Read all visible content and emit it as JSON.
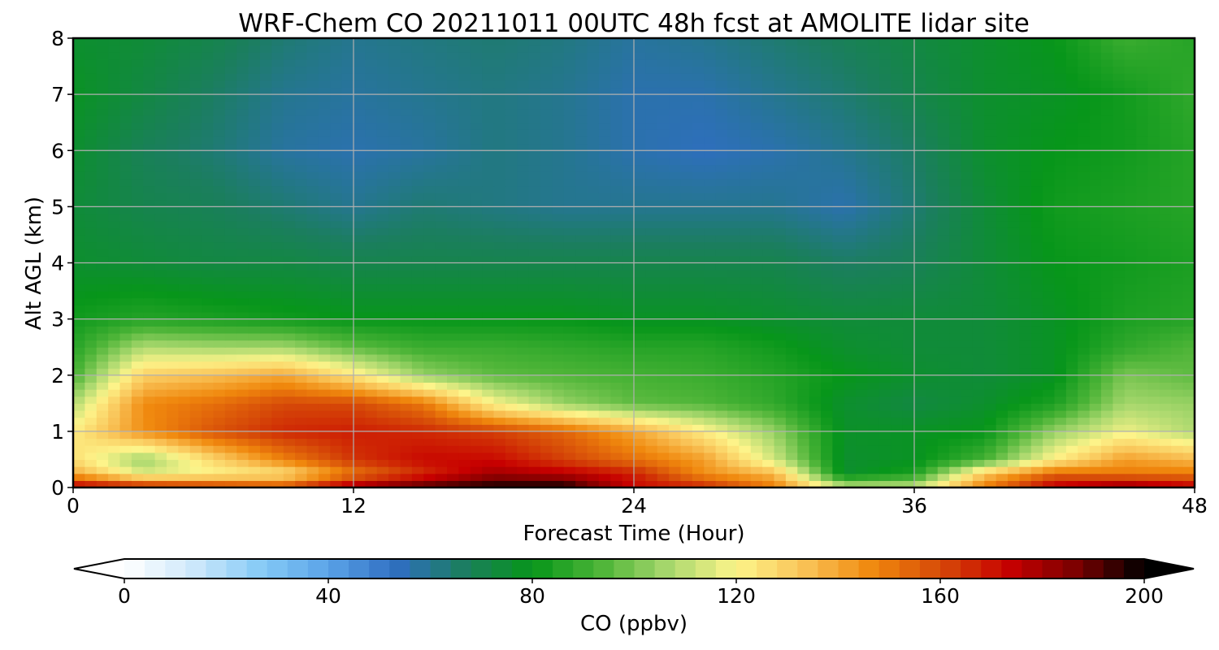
{
  "chart_data": {
    "type": "heatmap",
    "title": "WRF-Chem CO  20211011 00UTC 48h fcst at AMOLITE lidar site",
    "xlabel": "Forecast Time (Hour)",
    "ylabel": "Alt AGL (km)",
    "xlim": [
      0,
      48
    ],
    "ylim": [
      0,
      8
    ],
    "x_ticks": [
      "0",
      "12",
      "24",
      "36",
      "48"
    ],
    "y_ticks": [
      "0",
      "1",
      "2",
      "3",
      "4",
      "5",
      "6",
      "7",
      "8"
    ],
    "grid": true,
    "colorbar": {
      "label": "CO  (ppbv)",
      "range": [
        0,
        200
      ],
      "ticks": [
        "0",
        "40",
        "80",
        "120",
        "160",
        "200"
      ],
      "extend": "both",
      "orientation": "horizontal",
      "colors": [
        "#ffffff",
        "#cfe8fb",
        "#86cbf6",
        "#5aa3e8",
        "#2f6ec1",
        "#1b7e5e",
        "#07961a",
        "#4cb437",
        "#a9d86e",
        "#fdf48a",
        "#f9c357",
        "#f0880d",
        "#d64a08",
        "#c70000",
        "#7a0000",
        "#000000"
      ]
    },
    "x_hours": [
      0,
      3,
      6,
      9,
      12,
      15,
      18,
      21,
      24,
      27,
      30,
      33,
      36,
      39,
      42,
      45,
      48
    ],
    "altitude_km": [
      0,
      0.25,
      0.5,
      1,
      1.5,
      2,
      2.5,
      3,
      4,
      5,
      6,
      7,
      8
    ],
    "co_ppbv": [
      [
        178,
        172,
        166,
        160,
        182,
        194,
        199,
        200,
        172,
        168,
        150,
        112,
        112,
        150,
        177,
        186,
        176
      ],
      [
        140,
        115,
        120,
        125,
        150,
        165,
        180,
        176,
        168,
        145,
        136,
        76,
        84,
        132,
        154,
        150,
        150
      ],
      [
        126,
        104,
        128,
        148,
        164,
        172,
        172,
        162,
        152,
        142,
        113,
        76,
        78,
        92,
        122,
        142,
        136
      ],
      [
        122,
        145,
        158,
        166,
        168,
        166,
        162,
        154,
        140,
        122,
        104,
        77,
        78,
        80,
        104,
        118,
        108
      ],
      [
        108,
        146,
        152,
        160,
        160,
        150,
        120,
        104,
        96,
        94,
        88,
        76,
        72,
        76,
        84,
        106,
        104
      ],
      [
        92,
        130,
        134,
        140,
        124,
        104,
        96,
        94,
        92,
        90,
        86,
        80,
        76,
        74,
        78,
        100,
        96
      ],
      [
        86,
        108,
        106,
        106,
        96,
        90,
        90,
        88,
        86,
        86,
        82,
        76,
        74,
        74,
        78,
        88,
        94
      ],
      [
        82,
        86,
        84,
        82,
        80,
        80,
        80,
        80,
        78,
        78,
        76,
        74,
        74,
        74,
        78,
        84,
        86
      ],
      [
        76,
        74,
        72,
        72,
        70,
        70,
        70,
        70,
        70,
        70,
        70,
        66,
        68,
        74,
        80,
        82,
        84
      ],
      [
        74,
        70,
        68,
        64,
        60,
        64,
        62,
        60,
        60,
        60,
        60,
        56,
        64,
        74,
        82,
        84,
        86
      ],
      [
        76,
        68,
        64,
        58,
        56,
        58,
        62,
        60,
        56,
        54,
        56,
        60,
        66,
        76,
        80,
        82,
        86
      ],
      [
        78,
        72,
        66,
        60,
        58,
        60,
        62,
        60,
        56,
        56,
        60,
        64,
        70,
        76,
        78,
        82,
        88
      ],
      [
        76,
        74,
        70,
        64,
        60,
        62,
        64,
        62,
        58,
        60,
        64,
        68,
        72,
        76,
        80,
        90,
        86
      ]
    ]
  }
}
